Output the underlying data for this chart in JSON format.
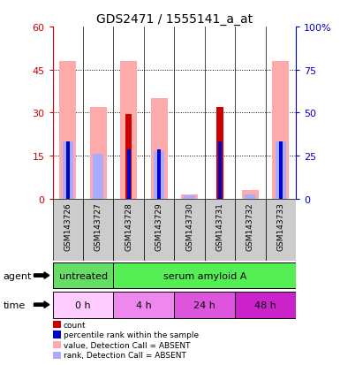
{
  "title": "GDS2471 / 1555141_a_at",
  "samples": [
    "GSM143726",
    "GSM143727",
    "GSM143728",
    "GSM143729",
    "GSM143730",
    "GSM143731",
    "GSM143732",
    "GSM143733"
  ],
  "ylim_left": [
    0,
    60
  ],
  "ylim_right": [
    0,
    100
  ],
  "yticks_left": [
    0,
    15,
    30,
    45,
    60
  ],
  "yticks_right": [
    0,
    25,
    50,
    75,
    100
  ],
  "count_values": [
    0,
    0,
    29.5,
    0,
    0,
    32,
    0,
    0
  ],
  "rank_values": [
    20,
    0,
    17,
    17,
    0,
    20,
    0,
    20
  ],
  "absent_value_values": [
    48,
    32,
    48,
    35,
    1.5,
    0,
    3,
    48
  ],
  "absent_rank_values": [
    20,
    15.5,
    0,
    16.5,
    1.0,
    0,
    1.5,
    20
  ],
  "color_count": "#cc0000",
  "color_rank": "#0000cc",
  "color_absent_value": "#ffaaaa",
  "color_absent_rank": "#aaaaff",
  "background_color": "#ffffff",
  "label_color_left": "#cc0000",
  "label_color_right": "#0000cc",
  "agent_untreated_color": "#66dd66",
  "agent_serum_color": "#55ee55",
  "time_colors": [
    "#ffccff",
    "#ee88ee",
    "#dd55dd",
    "#cc22cc"
  ],
  "time_labels": [
    "0 h",
    "4 h",
    "24 h",
    "48 h"
  ],
  "legend_items": [
    {
      "color": "#cc0000",
      "label": "count"
    },
    {
      "color": "#0000cc",
      "label": "percentile rank within the sample"
    },
    {
      "color": "#ffaaaa",
      "label": "value, Detection Call = ABSENT"
    },
    {
      "color": "#aaaaff",
      "label": "rank, Detection Call = ABSENT"
    }
  ]
}
